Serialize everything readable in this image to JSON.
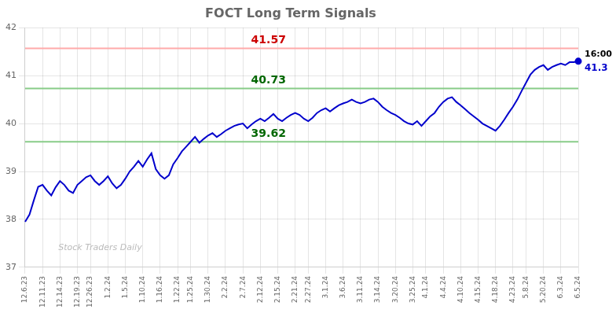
{
  "chart_data": {
    "type": "line",
    "title": "FOCT Long Term Signals",
    "categories": [
      "12.6.23",
      null,
      null,
      null,
      "12.11.23",
      null,
      null,
      null,
      "12.14.23",
      null,
      null,
      null,
      "12.19.23",
      null,
      null,
      "12.26.23",
      null,
      null,
      null,
      "1.2.24",
      null,
      null,
      null,
      "1.5.24",
      null,
      null,
      null,
      "1.10.24",
      null,
      null,
      null,
      "1.16.24",
      null,
      null,
      null,
      "1.22.24",
      null,
      null,
      "1.25.24",
      null,
      null,
      null,
      "1.30.24",
      null,
      null,
      null,
      "2.2.24",
      null,
      null,
      null,
      "2.7.24",
      null,
      null,
      null,
      "2.12.24",
      null,
      null,
      null,
      "2.15.24",
      null,
      null,
      null,
      "2.21.24",
      null,
      null,
      "2.27.24",
      null,
      null,
      null,
      "3.1.24",
      null,
      null,
      null,
      "3.6.24",
      null,
      null,
      null,
      "3.11.24",
      null,
      null,
      null,
      "3.14.24",
      null,
      null,
      null,
      "3.20.24",
      null,
      null,
      null,
      "3.25.24",
      null,
      null,
      "4.1.24",
      null,
      null,
      null,
      "4.4.24",
      null,
      null,
      null,
      "4.10.24",
      null,
      null,
      null,
      "4.15.24",
      null,
      null,
      null,
      "4.18.24",
      null,
      null,
      null,
      "4.23.24",
      null,
      null,
      "5.8.24",
      null,
      null,
      null,
      "5.20.24",
      null,
      null,
      null,
      "6.3.24",
      null,
      null,
      null,
      "6.5.24"
    ],
    "values": [
      37.95,
      38.1,
      38.4,
      38.68,
      38.72,
      38.6,
      38.5,
      38.67,
      38.8,
      38.72,
      38.6,
      38.55,
      38.72,
      38.8,
      38.88,
      38.92,
      38.8,
      38.72,
      38.8,
      38.9,
      38.75,
      38.65,
      38.72,
      38.85,
      39.0,
      39.1,
      39.22,
      39.1,
      39.25,
      39.38,
      39.05,
      38.92,
      38.85,
      38.92,
      39.15,
      39.28,
      39.42,
      39.52,
      39.62,
      39.72,
      39.6,
      39.68,
      39.75,
      39.8,
      39.72,
      39.78,
      39.85,
      39.9,
      39.95,
      39.98,
      40.0,
      39.9,
      39.98,
      40.05,
      40.1,
      40.05,
      40.12,
      40.2,
      40.1,
      40.05,
      40.12,
      40.18,
      40.22,
      40.18,
      40.1,
      40.05,
      40.12,
      40.22,
      40.28,
      40.32,
      40.25,
      40.32,
      40.38,
      40.42,
      40.45,
      40.5,
      40.45,
      40.42,
      40.45,
      40.5,
      40.52,
      40.45,
      40.35,
      40.28,
      40.22,
      40.18,
      40.12,
      40.05,
      40.0,
      39.98,
      40.05,
      39.95,
      40.05,
      40.15,
      40.22,
      40.35,
      40.45,
      40.52,
      40.55,
      40.45,
      40.38,
      40.3,
      40.22,
      40.15,
      40.08,
      40.0,
      39.95,
      39.9,
      39.85,
      39.95,
      40.08,
      40.22,
      40.35,
      40.5,
      40.68,
      40.85,
      41.02,
      41.12,
      41.18,
      41.22,
      41.12,
      41.18,
      41.22,
      41.25,
      41.22,
      41.28,
      41.28,
      41.3
    ],
    "color": "#0000cc",
    "ylim": [
      37,
      42
    ],
    "yticks": [
      37,
      38,
      39,
      40,
      41,
      42
    ],
    "grid": true,
    "hlines": [
      {
        "value": 41.57,
        "label": "41.57",
        "color": "#ffaaaa",
        "label_color": "#cc0000"
      },
      {
        "value": 40.73,
        "label": "40.73",
        "color": "#88cc88",
        "label_color": "#006600"
      },
      {
        "value": 39.62,
        "label": "39.62",
        "color": "#88cc88",
        "label_color": "#006600"
      }
    ],
    "end_labels": [
      {
        "text": "16:00",
        "color": "#000000"
      },
      {
        "text": "41.3",
        "color": "#0000cc"
      }
    ],
    "watermark": {
      "text": "Stock Traders Daily",
      "color": "#bbbbbb"
    }
  }
}
